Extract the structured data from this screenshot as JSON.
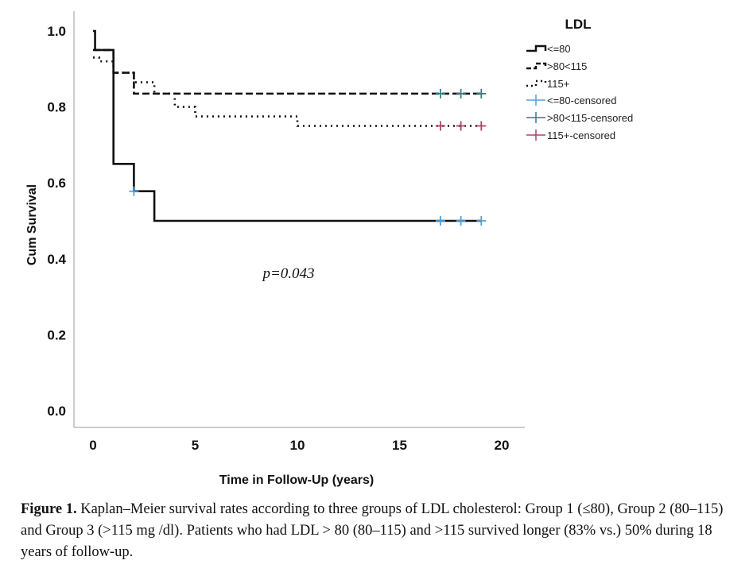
{
  "chart_data": {
    "type": "line",
    "subtype": "kaplan-meier step",
    "xlabel": "Time in Follow-Up (years)",
    "ylabel": "Cum Survival",
    "xlim": [
      -1,
      21
    ],
    "ylim": [
      -0.03,
      1.03
    ],
    "xticks": [
      0,
      5,
      10,
      15,
      20
    ],
    "yticks": [
      0.0,
      0.2,
      0.4,
      0.6,
      0.8,
      1.0
    ],
    "ytick_labels": [
      "0.0",
      "0.2",
      "0.4",
      "0.6",
      "0.8",
      "1.0"
    ],
    "grid": false,
    "legend": {
      "title": "LDL",
      "position": "top-right",
      "entries": [
        "<=80",
        ">80<115",
        "115+",
        "<=80-censored",
        ">80<115-censored",
        "115+-censored"
      ]
    },
    "series": [
      {
        "name": "<=80",
        "style": "solid",
        "color": "#111111",
        "steps": [
          [
            0,
            1.0
          ],
          [
            0.1,
            0.95
          ],
          [
            1,
            0.89
          ],
          [
            1,
            0.65
          ],
          [
            2,
            0.65
          ],
          [
            2,
            0.578
          ],
          [
            3,
            0.578
          ],
          [
            3,
            0.5
          ],
          [
            19,
            0.5
          ]
        ],
        "censored": [
          2,
          17,
          18,
          19
        ],
        "censor_color": "#4aa3df"
      },
      {
        "name": ">80<115",
        "style": "dashed",
        "color": "#111111",
        "steps": [
          [
            0,
            0.95
          ],
          [
            1,
            0.95
          ],
          [
            1,
            0.89
          ],
          [
            2,
            0.89
          ],
          [
            2,
            0.835
          ],
          [
            19,
            0.835
          ]
        ],
        "censored": [
          17,
          18,
          19
        ],
        "censor_color": "#2e7f80"
      },
      {
        "name": "115+",
        "style": "dotted",
        "color": "#111111",
        "steps": [
          [
            0,
            0.93
          ],
          [
            0.3,
            0.92
          ],
          [
            1,
            0.92
          ],
          [
            1,
            0.89
          ],
          [
            2,
            0.89
          ],
          [
            2,
            0.865
          ],
          [
            3,
            0.865
          ],
          [
            3,
            0.835
          ],
          [
            4,
            0.835
          ],
          [
            4,
            0.8
          ],
          [
            5,
            0.8
          ],
          [
            5,
            0.775
          ],
          [
            10,
            0.775
          ],
          [
            10,
            0.75
          ],
          [
            19,
            0.75
          ]
        ],
        "censored": [
          17,
          18,
          19
        ],
        "censor_color": "#b0406a"
      }
    ],
    "annotations": [
      {
        "text": "p=0.043",
        "x": 9.5,
        "y": 0.42
      }
    ]
  },
  "caption": {
    "label": "Figure 1.",
    "text": " Kaplan–Meier survival rates according to three groups of LDL cholesterol: Group 1 (≤80), Group 2 (80–115) and Group 3 (>115 mg /dl). Patients who had LDL > 80 (80–115) and >115 survived longer (83% vs.) 50% during 18 years of follow-up."
  }
}
